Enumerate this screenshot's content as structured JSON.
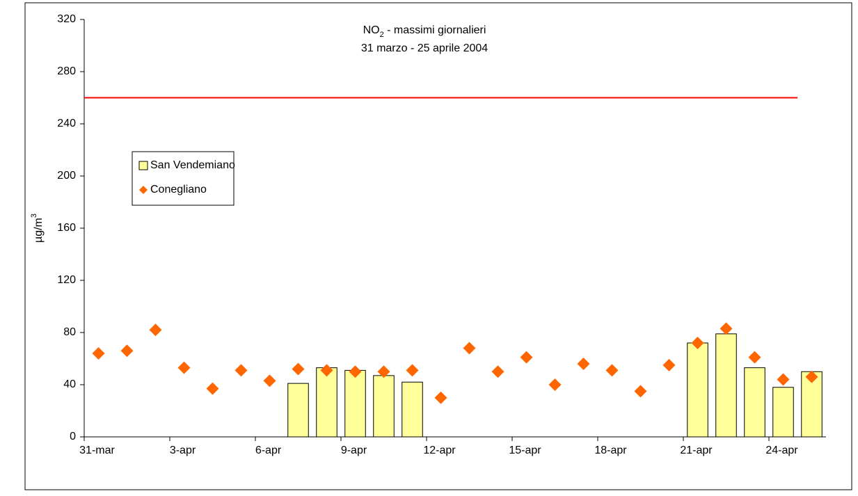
{
  "chart_data": {
    "type": "bar-scatter",
    "title_parts": [
      "NO",
      "2",
      " - massimi giornalieri"
    ],
    "subtitle": "31 marzo - 25 aprile 2004",
    "y_label_parts": [
      "µg/m",
      "3"
    ],
    "categories": [
      "31-mar",
      null,
      null,
      "3-apr",
      null,
      null,
      "6-apr",
      null,
      null,
      "9-apr",
      null,
      null,
      "12-apr",
      null,
      null,
      "15-apr",
      null,
      null,
      "18-apr",
      null,
      null,
      "21-apr",
      null,
      null,
      "24-apr",
      null
    ],
    "series": [
      {
        "name": "San Vendemiano",
        "type": "bar",
        "color": "#ffff99",
        "values": [
          null,
          null,
          null,
          null,
          null,
          null,
          null,
          41,
          53,
          51,
          47,
          42,
          null,
          null,
          null,
          null,
          null,
          null,
          null,
          null,
          null,
          72,
          79,
          53,
          38,
          50
        ]
      },
      {
        "name": "Conegliano",
        "type": "scatter",
        "color": "#ff6600",
        "values": [
          64,
          66,
          82,
          53,
          37,
          51,
          43,
          52,
          51,
          50,
          50,
          51,
          30,
          68,
          50,
          61,
          40,
          56,
          51,
          35,
          55,
          72,
          83,
          61,
          44,
          46
        ]
      }
    ],
    "limit_line": {
      "value": 260,
      "color": "#ff0000"
    },
    "ylim": [
      0,
      320
    ],
    "yticks": [
      0,
      40,
      80,
      120,
      160,
      200,
      240,
      280,
      320
    ],
    "legend": "upper left"
  }
}
